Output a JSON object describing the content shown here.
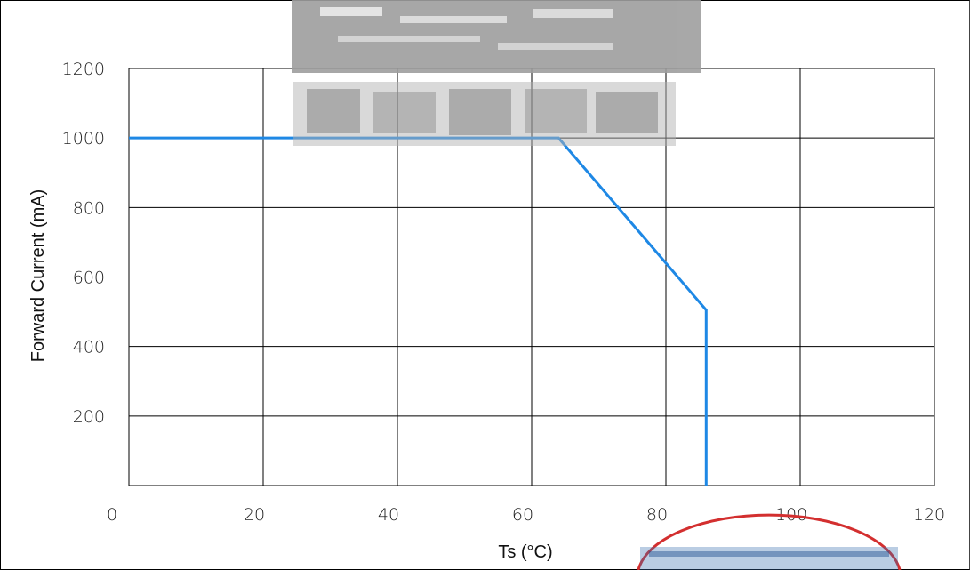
{
  "chart_data": {
    "type": "line",
    "xlabel": "Ts (°C)",
    "ylabel": "Forward Current (mA)",
    "xlim": [
      0,
      120
    ],
    "ylim": [
      0,
      1200
    ],
    "x_ticks": [
      0,
      20,
      40,
      60,
      80,
      100,
      120
    ],
    "y_ticks": [
      200,
      400,
      600,
      800,
      1000,
      1200
    ],
    "grid": true,
    "line_color": "#1e88e5",
    "series": [
      {
        "x": [
          0,
          64,
          86,
          86
        ],
        "y": [
          1000,
          1000,
          505,
          0
        ]
      }
    ]
  }
}
